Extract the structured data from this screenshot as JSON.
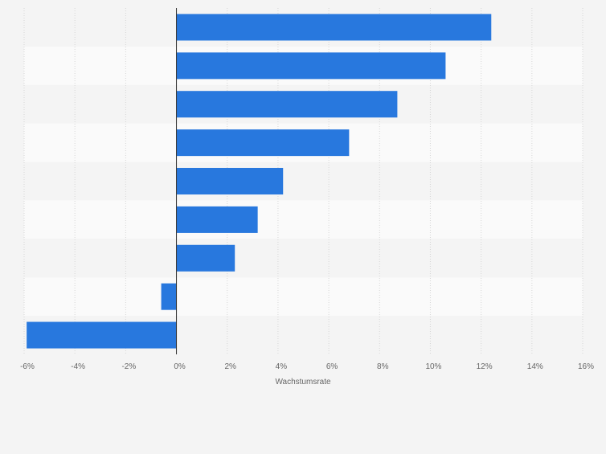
{
  "chart_data": {
    "type": "bar",
    "orientation": "horizontal",
    "xlabel": "Wachstumsrate",
    "xlim": [
      -6,
      16
    ],
    "xticks": [
      -6,
      -4,
      -2,
      0,
      2,
      4,
      6,
      8,
      10,
      12,
      14,
      16
    ],
    "tick_suffix": "%",
    "grid": true,
    "legend": "none",
    "bar_color": "#2878de",
    "values": [
      12.4,
      10.6,
      8.7,
      6.8,
      4.2,
      3.2,
      2.3,
      -0.6,
      -5.9
    ]
  }
}
